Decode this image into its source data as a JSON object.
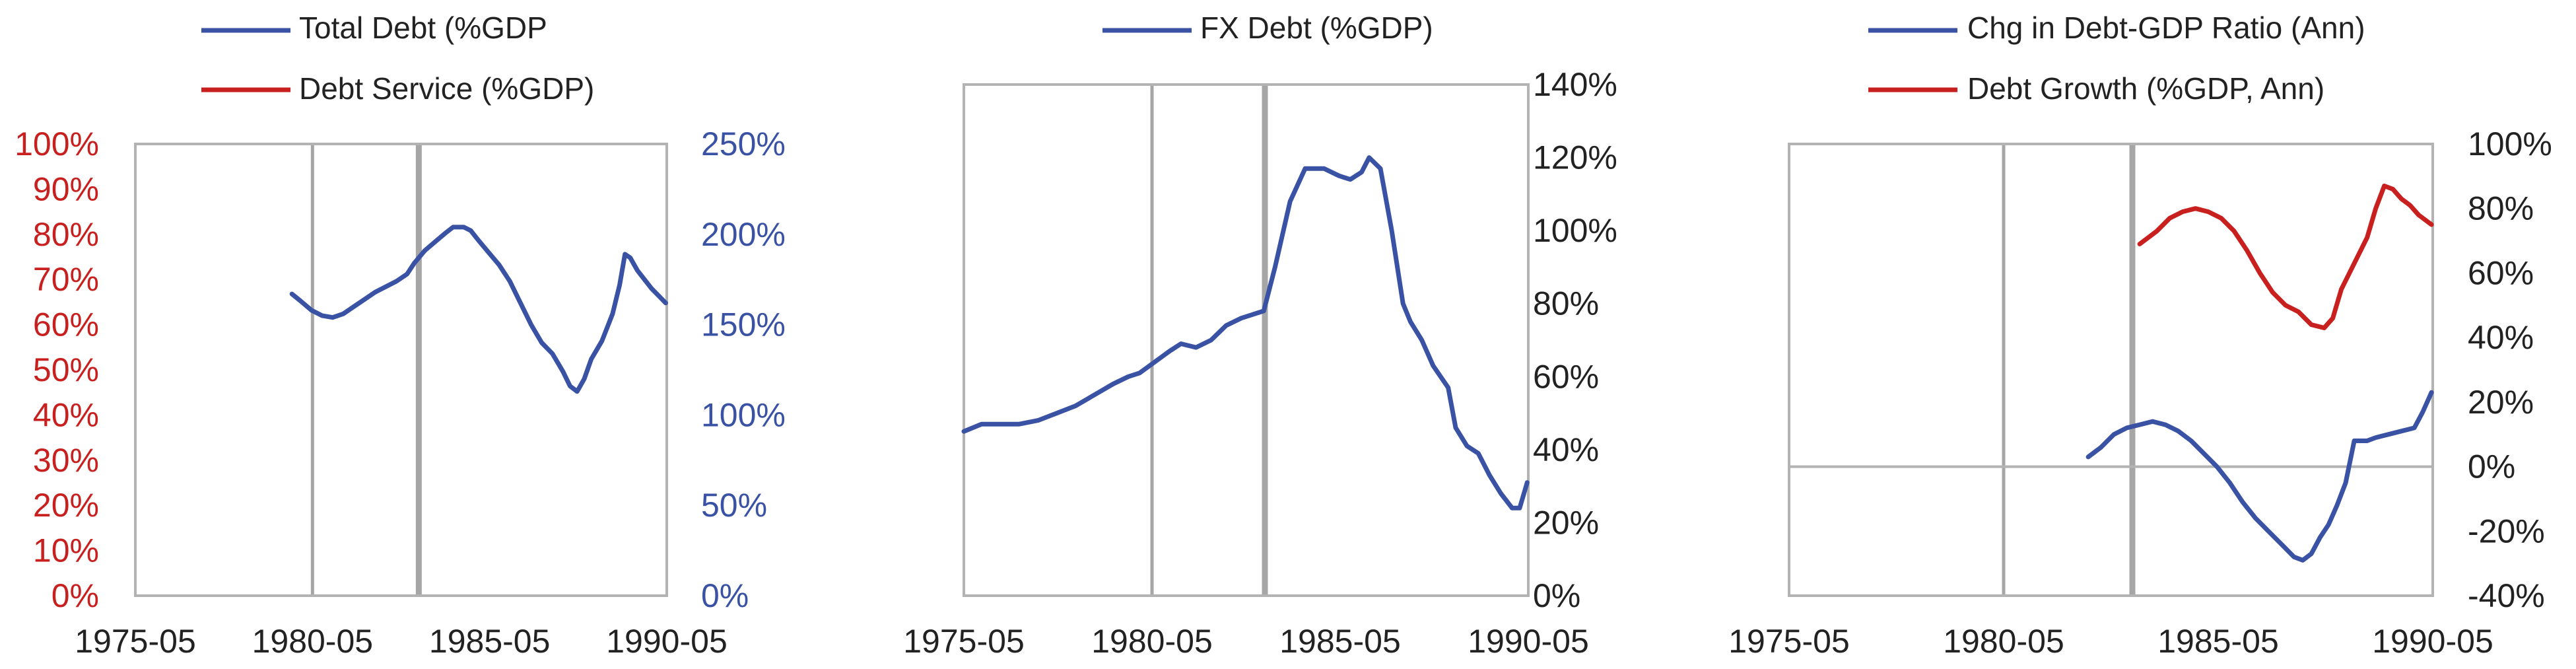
{
  "colors": {
    "blue": "#3a52a4",
    "red": "#c8201e",
    "frame": "#b3b3b3",
    "vline": "#a6a6a6",
    "axis_text": "#222222"
  },
  "chart_data": [
    {
      "type": "line",
      "legend": [
        "Total Debt (%GDP",
        "Debt Service (%GDP)"
      ],
      "x_ticks": [
        "1975-05",
        "1980-05",
        "1985-05",
        "1990-05"
      ],
      "xlim": [
        1975.33,
        1990.33
      ],
      "left_axis": {
        "ticks": [
          "0%",
          "10%",
          "20%",
          "30%",
          "40%",
          "50%",
          "60%",
          "70%",
          "80%",
          "90%",
          "100%"
        ],
        "ylim": [
          0,
          100
        ]
      },
      "right_axis": {
        "ticks": [
          "0%",
          "50%",
          "100%",
          "150%",
          "200%",
          "250%"
        ],
        "ylim": [
          0,
          250
        ]
      },
      "vertical_lines": [
        1980.33,
        1983.33
      ],
      "series": [
        {
          "name": "Total Debt (%GDP",
          "axis": "right",
          "color": "blue",
          "x": [
            1979.75,
            1980.0,
            1980.3,
            1980.6,
            1980.9,
            1981.2,
            1981.5,
            1981.8,
            1982.1,
            1982.4,
            1982.7,
            1983.0,
            1983.2,
            1983.5,
            1983.8,
            1984.1,
            1984.3,
            1984.6,
            1984.8,
            1985.0,
            1985.3,
            1985.6,
            1985.9,
            1986.2,
            1986.5,
            1986.8,
            1987.1,
            1987.4,
            1987.6,
            1987.8,
            1988.0,
            1988.2,
            1988.5,
            1988.8,
            1989.0,
            1989.15,
            1989.3,
            1989.5,
            1989.7,
            1989.9,
            1990.1,
            1990.3
          ],
          "y": [
            167,
            163,
            158,
            155,
            154,
            156,
            160,
            164,
            168,
            171,
            174,
            178,
            184,
            191,
            196,
            201,
            204,
            204,
            202,
            197,
            190,
            183,
            174,
            162,
            150,
            140,
            134,
            124,
            116,
            113,
            120,
            131,
            141,
            156,
            172,
            189,
            187,
            180,
            175,
            170,
            166,
            162
          ]
        },
        {
          "name": "Debt Service (%GDP)",
          "axis": "left",
          "color": "red",
          "x": [],
          "y": []
        }
      ]
    },
    {
      "type": "line",
      "legend": [
        "FX Debt (%GDP)"
      ],
      "x_ticks": [
        "1975-05",
        "1980-05",
        "1985-05",
        "1990-05"
      ],
      "xlim": [
        1975.33,
        1990.33
      ],
      "right_axis": {
        "ticks": [
          "0%",
          "20%",
          "40%",
          "60%",
          "80%",
          "100%",
          "120%",
          "140%"
        ],
        "ylim": [
          0,
          140
        ]
      },
      "vertical_lines": [
        1980.33,
        1983.33
      ],
      "series": [
        {
          "name": "FX Debt (%GDP)",
          "axis": "right",
          "color": "blue",
          "x": [
            1975.33,
            1975.8,
            1976.3,
            1976.8,
            1977.3,
            1977.8,
            1978.3,
            1978.8,
            1979.3,
            1979.7,
            1980.0,
            1980.4,
            1980.8,
            1981.1,
            1981.5,
            1981.9,
            1982.3,
            1982.7,
            1983.0,
            1983.3,
            1983.6,
            1984.0,
            1984.4,
            1984.9,
            1985.3,
            1985.6,
            1985.9,
            1986.1,
            1986.4,
            1986.7,
            1987.0,
            1987.2,
            1987.5,
            1987.8,
            1988.0,
            1988.2,
            1988.4,
            1988.7,
            1989.0,
            1989.3,
            1989.6,
            1989.9,
            1990.1,
            1990.3
          ],
          "y": [
            45,
            47,
            47,
            47,
            48,
            50,
            52,
            55,
            58,
            60,
            61,
            64,
            67,
            69,
            68,
            70,
            74,
            76,
            77,
            78,
            90,
            108,
            117,
            117,
            115,
            114,
            116,
            120,
            117,
            100,
            80,
            75,
            70,
            63,
            60,
            57,
            46,
            41,
            39,
            33,
            28,
            24,
            24,
            31
          ]
        }
      ]
    },
    {
      "type": "line",
      "legend": [
        "Chg in Debt-GDP Ratio (Ann)",
        "Debt Growth (%GDP, Ann)"
      ],
      "x_ticks": [
        "1975-05",
        "1980-05",
        "1985-05",
        "1990-05"
      ],
      "xlim": [
        1975.33,
        1990.33
      ],
      "right_axis": {
        "ticks": [
          "-40%",
          "-20%",
          "0%",
          "20%",
          "40%",
          "60%",
          "80%",
          "100%"
        ],
        "ylim": [
          -40,
          100
        ]
      },
      "vertical_lines": [
        1980.33,
        1983.33
      ],
      "series": [
        {
          "name": "Chg in Debt-GDP Ratio (Ann)",
          "axis": "right",
          "color": "blue",
          "x": [
            1982.3,
            1982.6,
            1982.9,
            1983.2,
            1983.5,
            1983.8,
            1984.1,
            1984.4,
            1984.7,
            1985.0,
            1985.3,
            1985.6,
            1985.9,
            1986.2,
            1986.5,
            1986.8,
            1987.1,
            1987.3,
            1987.5,
            1987.7,
            1987.9,
            1988.1,
            1988.3,
            1988.5,
            1988.8,
            1989.0,
            1989.3,
            1989.6,
            1989.9,
            1990.1,
            1990.3
          ],
          "y": [
            3,
            6,
            10,
            12,
            13,
            14,
            13,
            11,
            8,
            4,
            0,
            -5,
            -11,
            -16,
            -20,
            -24,
            -28,
            -29,
            -27,
            -22,
            -18,
            -12,
            -5,
            8,
            8,
            9,
            10,
            11,
            12,
            17,
            23
          ]
        },
        {
          "name": "Debt Growth (%GDP, Ann)",
          "axis": "right",
          "color": "red",
          "x": [
            1983.5,
            1983.9,
            1984.2,
            1984.5,
            1984.8,
            1985.1,
            1985.4,
            1985.7,
            1986.0,
            1986.3,
            1986.6,
            1986.9,
            1987.2,
            1987.5,
            1987.8,
            1988.0,
            1988.2,
            1988.5,
            1988.8,
            1989.0,
            1989.2,
            1989.4,
            1989.6,
            1989.8,
            1990.0,
            1990.3
          ],
          "y": [
            69,
            73,
            77,
            79,
            80,
            79,
            77,
            73,
            67,
            60,
            54,
            50,
            48,
            44,
            43,
            46,
            55,
            63,
            71,
            80,
            87,
            86,
            83,
            81,
            78,
            75
          ]
        }
      ]
    }
  ]
}
